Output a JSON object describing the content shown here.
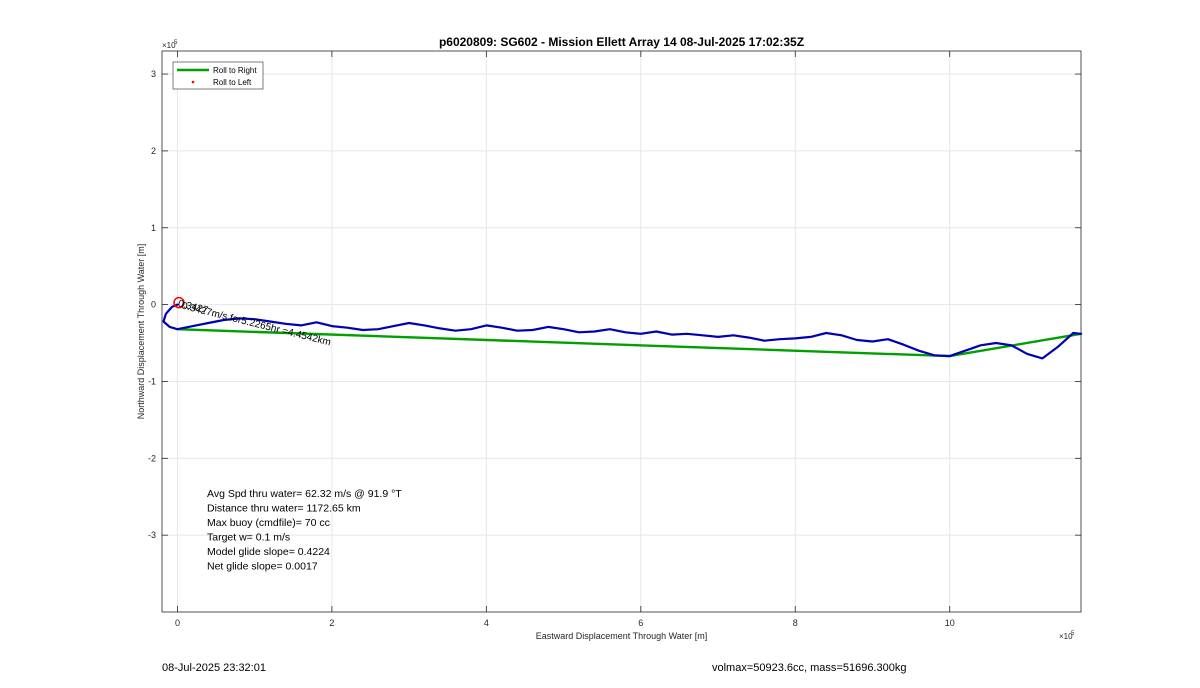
{
  "footer": {
    "left": "08-Jul-2025 23:32:01",
    "right": "volmax=50923.6cc, mass=51696.300kg"
  },
  "chart_data": {
    "type": "line",
    "title": "p6020809: SG602 - Mission Ellett Array 14 08-Jul-2025 17:02:35Z",
    "xlabel": "Eastward Displacement Through Water [m]",
    "ylabel": "Northward Displacement Through Water [m]",
    "x_exponent_label": "×10",
    "x_exponent": "5",
    "y_exponent_label": "×10",
    "y_exponent": "5",
    "xlim": [
      -20000,
      1170000
    ],
    "ylim": [
      -400000,
      330000
    ],
    "xticks": [
      0,
      200000,
      400000,
      600000,
      800000,
      1000000
    ],
    "xtick_labels": [
      "0",
      "2",
      "4",
      "6",
      "8",
      "10"
    ],
    "yticks": [
      -300000,
      -200000,
      -100000,
      0,
      100000,
      200000,
      300000
    ],
    "ytick_labels": [
      "-3",
      "-2",
      "-1",
      "0",
      "1",
      "2",
      "3"
    ],
    "grid": true,
    "legend_position": "top-left",
    "legend": [
      {
        "label": "Roll to Right",
        "color": "#00a000",
        "marker": "line"
      },
      {
        "label": "Roll to Left",
        "color": "#ff0000",
        "marker": "dot"
      }
    ],
    "series": [
      {
        "name": "Roll to Right",
        "color": "#00a000",
        "x": [
          0,
          1000000,
          1170000
        ],
        "y": [
          -32000,
          -67000,
          -38000
        ]
      },
      {
        "color": "#0000b4",
        "x": [
          0,
          -7000,
          -15000,
          -18000,
          -10000,
          0,
          20000,
          40000,
          60000,
          80000,
          100000,
          120000,
          140000,
          160000,
          180000,
          200000,
          220000,
          240000,
          260000,
          280000,
          300000,
          320000,
          340000,
          360000,
          380000,
          400000,
          420000,
          440000,
          460000,
          480000,
          500000,
          520000,
          540000,
          560000,
          580000,
          600000,
          620000,
          640000,
          660000,
          680000,
          700000,
          720000,
          740000,
          760000,
          780000,
          800000,
          820000,
          840000,
          860000,
          880000,
          900000,
          920000,
          940000,
          960000,
          980000,
          1000000,
          1020000,
          1040000,
          1060000,
          1080000,
          1100000,
          1120000,
          1140000,
          1160000,
          1170000
        ],
        "y": [
          0,
          -3000,
          -12000,
          -22000,
          -29000,
          -32000,
          -28000,
          -24000,
          -20000,
          -18000,
          -19000,
          -22000,
          -25000,
          -27000,
          -23000,
          -28000,
          -30000,
          -33000,
          -32000,
          -28000,
          -24000,
          -27000,
          -31000,
          -34000,
          -32000,
          -27000,
          -30000,
          -34000,
          -33000,
          -29000,
          -32000,
          -36000,
          -35000,
          -32000,
          -36000,
          -38000,
          -35000,
          -39000,
          -38000,
          -40000,
          -42000,
          -40000,
          -43000,
          -47000,
          -45000,
          -44000,
          -42000,
          -37000,
          -40000,
          -46000,
          -48000,
          -45000,
          -52000,
          -60000,
          -66000,
          -67000,
          -60000,
          -53000,
          -50000,
          -53000,
          -64000,
          -70000,
          -55000,
          -37000,
          -38000
        ]
      }
    ],
    "markers": [
      {
        "x": 2000,
        "y": 2500,
        "color": "#ff0000",
        "shape": "circle"
      }
    ],
    "annotations": [
      {
        "text": "0.3427m/s for5.2265hr =4.4542km",
        "x": 5000,
        "y": -5000,
        "rotation": 14
      },
      {
        "text": "0.3427",
        "x": 0,
        "y": -2000,
        "rotation": 14
      }
    ],
    "stats": [
      "Avg Spd thru water= 62.32 m/s @  91.9 °T",
      "Distance thru water= 1172.65 km",
      "Max buoy (cmdfile)= 70 cc",
      "Target w= 0.1 m/s",
      "Model glide slope= 0.4224",
      "Net glide slope= 0.0017"
    ]
  }
}
